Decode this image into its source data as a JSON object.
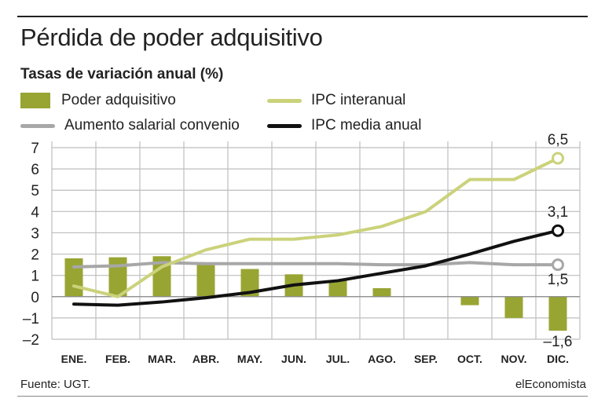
{
  "title": "Pérdida de poder adquisitivo",
  "subtitle": "Tasas de variación anual (%)",
  "source": "Fuente: UGT.",
  "brand": "elEconomista",
  "legend": {
    "bar": "Poder adquisitivo",
    "ipc_interanual": "IPC interanual",
    "salarial": "Aumento salarial convenio",
    "ipc_media": "IPC media anual"
  },
  "colors": {
    "bar": "#98a533",
    "ipc_interanual": "#cbd27a",
    "salarial": "#a7a7a7",
    "ipc_media": "#111111",
    "grid": "#bdbdbd"
  },
  "annotations": {
    "ipc_interanual_end": "6,5",
    "ipc_media_end": "3,1",
    "salarial_end": "1,5",
    "poder_end": "–1,6"
  },
  "chart_data": {
    "type": "bar+line",
    "categories": [
      "ENE.",
      "FEB.",
      "MAR.",
      "ABR.",
      "MAY.",
      "JUN.",
      "JUL.",
      "AGO.",
      "SEP.",
      "OCT.",
      "NOV.",
      "DIC."
    ],
    "ylim": [
      -2,
      7
    ],
    "yticks": [
      -2,
      -1,
      0,
      1,
      2,
      3,
      4,
      5,
      6,
      7
    ],
    "ytick_labels": [
      "–2",
      "–1",
      "0",
      "1",
      "2",
      "3",
      "4",
      "5",
      "6",
      "7"
    ],
    "grid": true,
    "series": [
      {
        "name": "Poder adquisitivo",
        "kind": "bar",
        "values": [
          1.8,
          1.85,
          1.9,
          1.5,
          1.3,
          1.05,
          0.75,
          0.4,
          0,
          -0.4,
          -1.0,
          -1.6
        ]
      },
      {
        "name": "IPC interanual",
        "kind": "line",
        "values": [
          0.5,
          0.0,
          1.4,
          2.2,
          2.7,
          2.7,
          2.9,
          3.3,
          4.0,
          5.5,
          5.5,
          6.5
        ]
      },
      {
        "name": "Aumento salarial convenio",
        "kind": "line",
        "values": [
          1.4,
          1.45,
          1.6,
          1.55,
          1.55,
          1.55,
          1.55,
          1.5,
          1.5,
          1.6,
          1.5,
          1.5
        ]
      },
      {
        "name": "IPC media anual",
        "kind": "line",
        "values": [
          -0.35,
          -0.4,
          -0.25,
          -0.05,
          0.2,
          0.55,
          0.75,
          1.1,
          1.45,
          2.0,
          2.6,
          3.1
        ]
      }
    ]
  }
}
